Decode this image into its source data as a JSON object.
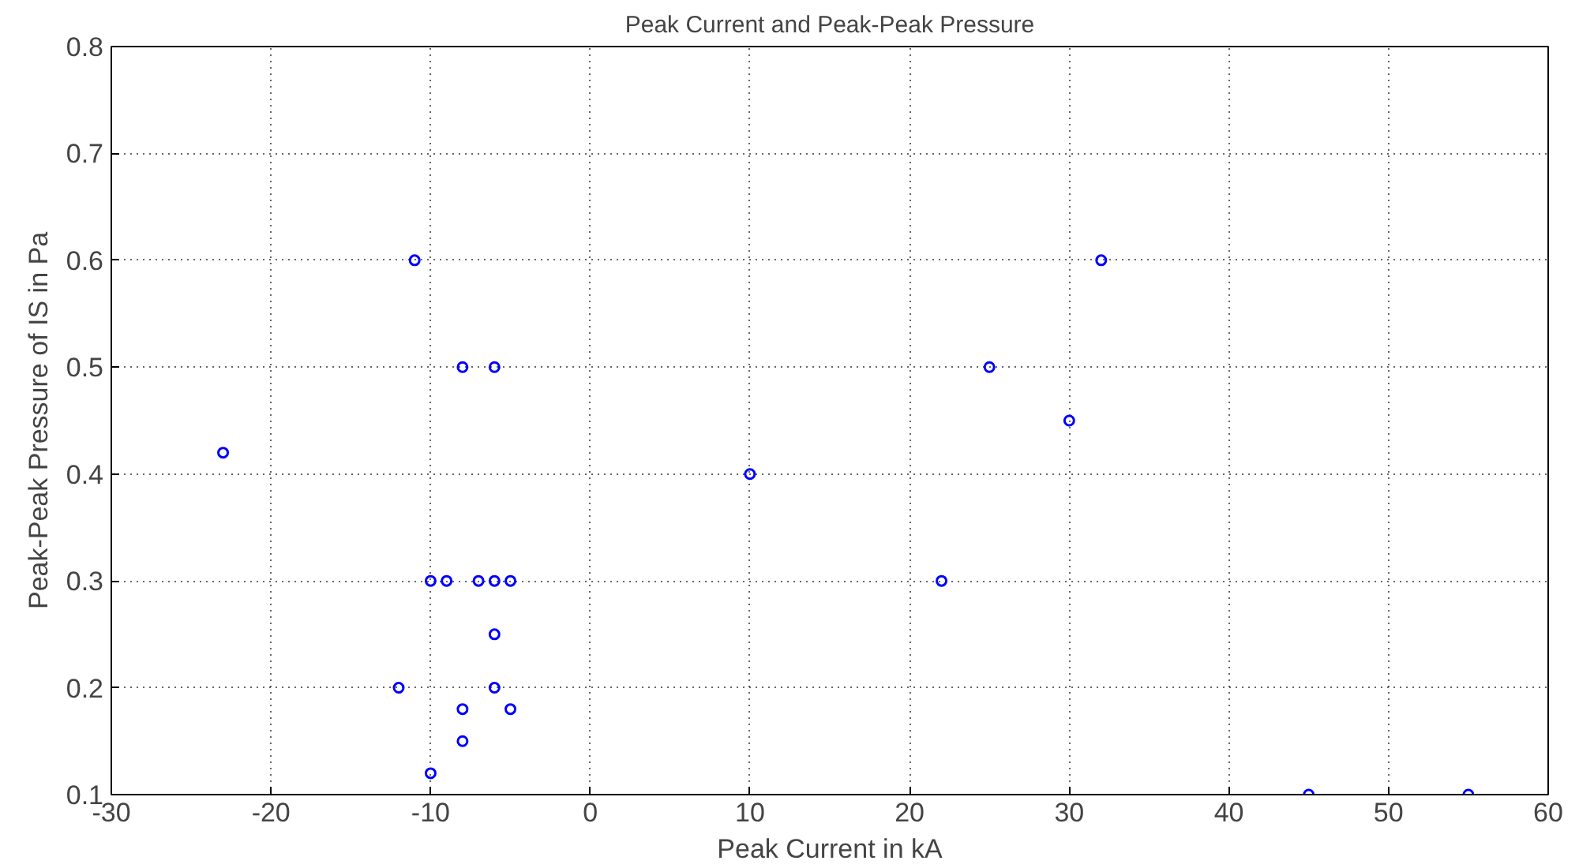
{
  "chart_data": {
    "type": "scatter",
    "title": "Peak Current and Peak-Peak Pressure",
    "xlabel": "Peak Current in kA",
    "ylabel": "Peak-Peak Pressure of IS in Pa",
    "x": [
      -23,
      -11,
      -8,
      -6,
      -10,
      -9,
      -7,
      -6,
      -5,
      -6,
      -12,
      -6,
      -8,
      -5,
      -8,
      -10,
      10,
      22,
      25,
      30,
      32,
      45,
      55
    ],
    "series": [
      {
        "color": "#0000ff",
        "values": [
          0.42,
          0.6,
          0.5,
          0.5,
          0.3,
          0.3,
          0.3,
          0.3,
          0.3,
          0.25,
          0.2,
          0.2,
          0.18,
          0.18,
          0.15,
          0.12,
          0.4,
          0.3,
          0.5,
          0.45,
          0.6,
          0.1,
          0.1
        ]
      }
    ],
    "xlim": [
      -30,
      60
    ],
    "ylim": [
      0.1,
      0.8
    ],
    "xticks": [
      -30,
      -20,
      -10,
      0,
      10,
      20,
      30,
      40,
      50,
      60
    ],
    "yticks": [
      0.1,
      0.2,
      0.3,
      0.4,
      0.5,
      0.6,
      0.7,
      0.8
    ],
    "grid": true,
    "marker": "circle"
  }
}
